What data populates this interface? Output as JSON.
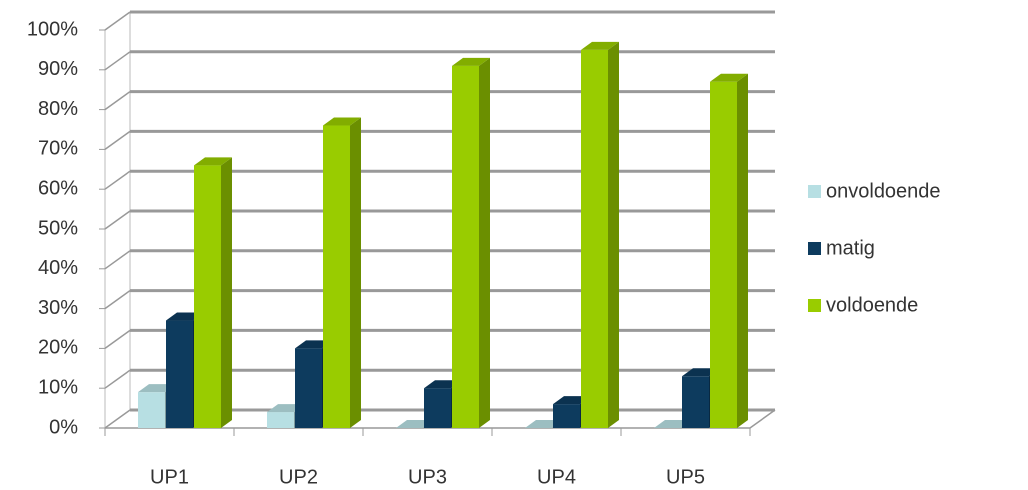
{
  "chart_data": {
    "type": "bar",
    "categories": [
      "UP1",
      "UP2",
      "UP3",
      "UP4",
      "UP5"
    ],
    "series": [
      {
        "name": "onvoldoende",
        "color": "#b7dfe3",
        "values": [
          9,
          4,
          0,
          0,
          0
        ]
      },
      {
        "name": "matig",
        "color": "#0d3b5e",
        "values": [
          27,
          20,
          10,
          6,
          13
        ]
      },
      {
        "name": "voldoende",
        "color": "#99cc00",
        "values": [
          66,
          76,
          91,
          95,
          87
        ]
      }
    ],
    "ylim": [
      0,
      100
    ],
    "yticks": [
      {
        "value": 0,
        "label": "0%"
      },
      {
        "value": 10,
        "label": "10%"
      },
      {
        "value": 20,
        "label": "20%"
      },
      {
        "value": 30,
        "label": "30%"
      },
      {
        "value": 40,
        "label": "40%"
      },
      {
        "value": 50,
        "label": "50%"
      },
      {
        "value": 60,
        "label": "60%"
      },
      {
        "value": 70,
        "label": "70%"
      },
      {
        "value": 80,
        "label": "80%"
      },
      {
        "value": 90,
        "label": "90%"
      },
      {
        "value": 100,
        "label": "100%"
      }
    ],
    "grid": true,
    "legend": "right"
  }
}
